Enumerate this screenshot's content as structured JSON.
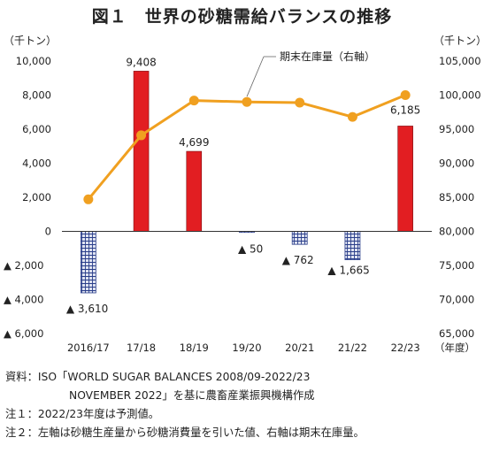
{
  "title": "図１　世界の砂糖需給バランスの推移",
  "chart_data": {
    "type": "bar",
    "categories": [
      "2016/17",
      "17/18",
      "18/19",
      "19/20",
      "20/21",
      "21/22",
      "22/23"
    ],
    "x_unit": "（年度）",
    "series": [
      {
        "axis": "left",
        "type": "bar",
        "values": [
          -3610,
          9408,
          4699,
          -50,
          -762,
          -1665,
          6185
        ],
        "colors": {
          "positive": "#e21e22",
          "negative_fill": "#dfe3f1",
          "negative_hatch": "#2a3e8a"
        }
      },
      {
        "axis": "right",
        "type": "line",
        "name": "期末在庫量（右軸）",
        "values": [
          84700,
          94100,
          99200,
          99000,
          98900,
          96800,
          100000
        ],
        "color": "#f0a020"
      }
    ],
    "data_labels": [
      "▲ 3,610",
      "9,408",
      "4,699",
      "▲ 50",
      "▲ 762",
      "▲ 1,665",
      "6,185"
    ],
    "left_axis": {
      "unit": "（千トン）",
      "ylim": [
        -6000,
        10000
      ],
      "ticks": [
        10000,
        8000,
        6000,
        4000,
        2000,
        0,
        -2000,
        -4000,
        -6000
      ],
      "tick_labels": [
        "10,000",
        "8,000",
        "6,000",
        "4,000",
        "2,000",
        "0",
        "▲ 2,000",
        "▲ 4,000",
        "▲ 6,000"
      ]
    },
    "right_axis": {
      "unit": "（千トン）",
      "ylim": [
        65000,
        105000
      ],
      "ticks": [
        105000,
        100000,
        95000,
        90000,
        85000,
        80000,
        75000,
        70000,
        65000
      ],
      "tick_labels": [
        "105,000",
        "100,000",
        "95,000",
        "90,000",
        "85,000",
        "80,000",
        "75,000",
        "70,000",
        "65,000"
      ]
    },
    "grid": false,
    "legend": "top-right"
  },
  "notes": {
    "source_label": "資料：",
    "source_line1": "ISO「WORLD SUGAR BALANCES 2008/09-2022/23",
    "source_line2": "NOVEMBER 2022」を基に農畜産業振興機構作成",
    "note1_label": "注１：",
    "note1_text": "2022/23年度は予測値。",
    "note2_label": "注２：",
    "note2_text": "左軸は砂糖生産量から砂糖消費量を引いた値、右軸は期末在庫量。"
  }
}
